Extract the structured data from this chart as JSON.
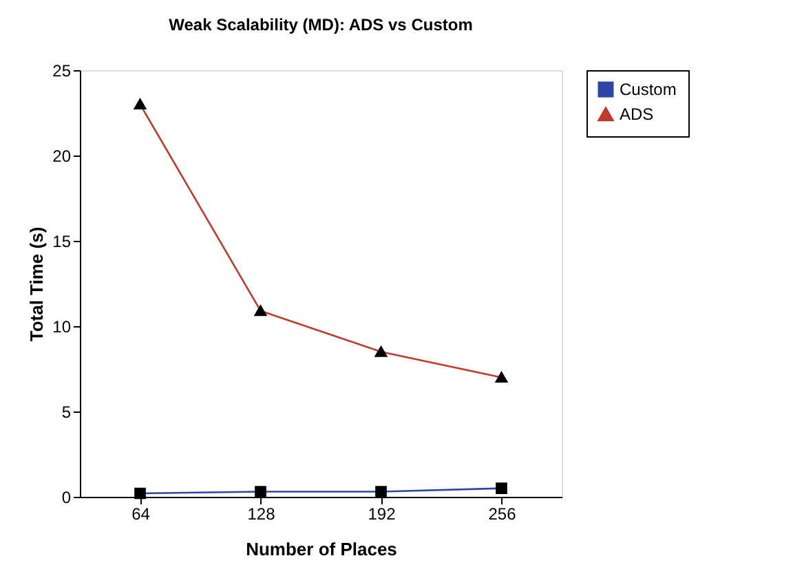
{
  "chart_data": {
    "type": "line",
    "title": "Weak Scalability (MD): ADS vs Custom",
    "xlabel": "Number of Places",
    "ylabel": "Total Time (s)",
    "categories": [
      "64",
      "128",
      "192",
      "256"
    ],
    "series": [
      {
        "name": "Custom",
        "color": "#2e45a8",
        "marker": "square",
        "values": [
          0.2,
          0.3,
          0.3,
          0.5
        ]
      },
      {
        "name": "ADS",
        "color": "#c0392b",
        "marker": "triangle",
        "values": [
          23,
          10.9,
          8.5,
          7
        ]
      }
    ],
    "ylim": [
      0,
      25
    ],
    "yticks": [
      0,
      5,
      10,
      15,
      20,
      25
    ],
    "grid": false,
    "legend": "right",
    "line_style": "solid"
  }
}
